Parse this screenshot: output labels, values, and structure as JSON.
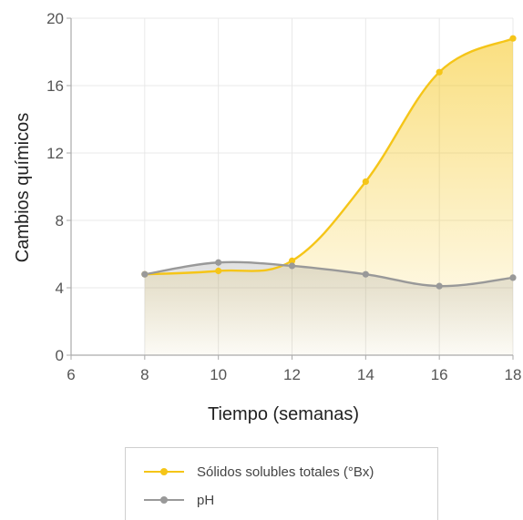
{
  "chart_data": {
    "type": "line",
    "title": "",
    "xlabel": "Tiempo (semanas)",
    "ylabel": "Cambios químicos",
    "xlim": [
      6,
      18
    ],
    "ylim": [
      0,
      20
    ],
    "x_ticks": [
      "6",
      "8",
      "10",
      "12",
      "14",
      "16",
      "18"
    ],
    "y_ticks": [
      "0",
      "4",
      "8",
      "12",
      "16",
      "20"
    ],
    "grid": true,
    "legend_position": "bottom",
    "series": [
      {
        "name": "Sólidos solubles totales (°Bx)",
        "color": "#f5c518",
        "x": [
          8,
          10,
          12,
          14,
          16,
          18
        ],
        "y": [
          4.8,
          5.0,
          5.6,
          10.3,
          16.8,
          18.8
        ]
      },
      {
        "name": "pH",
        "color": "#999999",
        "x": [
          8,
          10,
          12,
          14,
          16,
          18
        ],
        "y": [
          4.8,
          5.5,
          5.3,
          4.8,
          4.1,
          4.6
        ]
      }
    ]
  }
}
